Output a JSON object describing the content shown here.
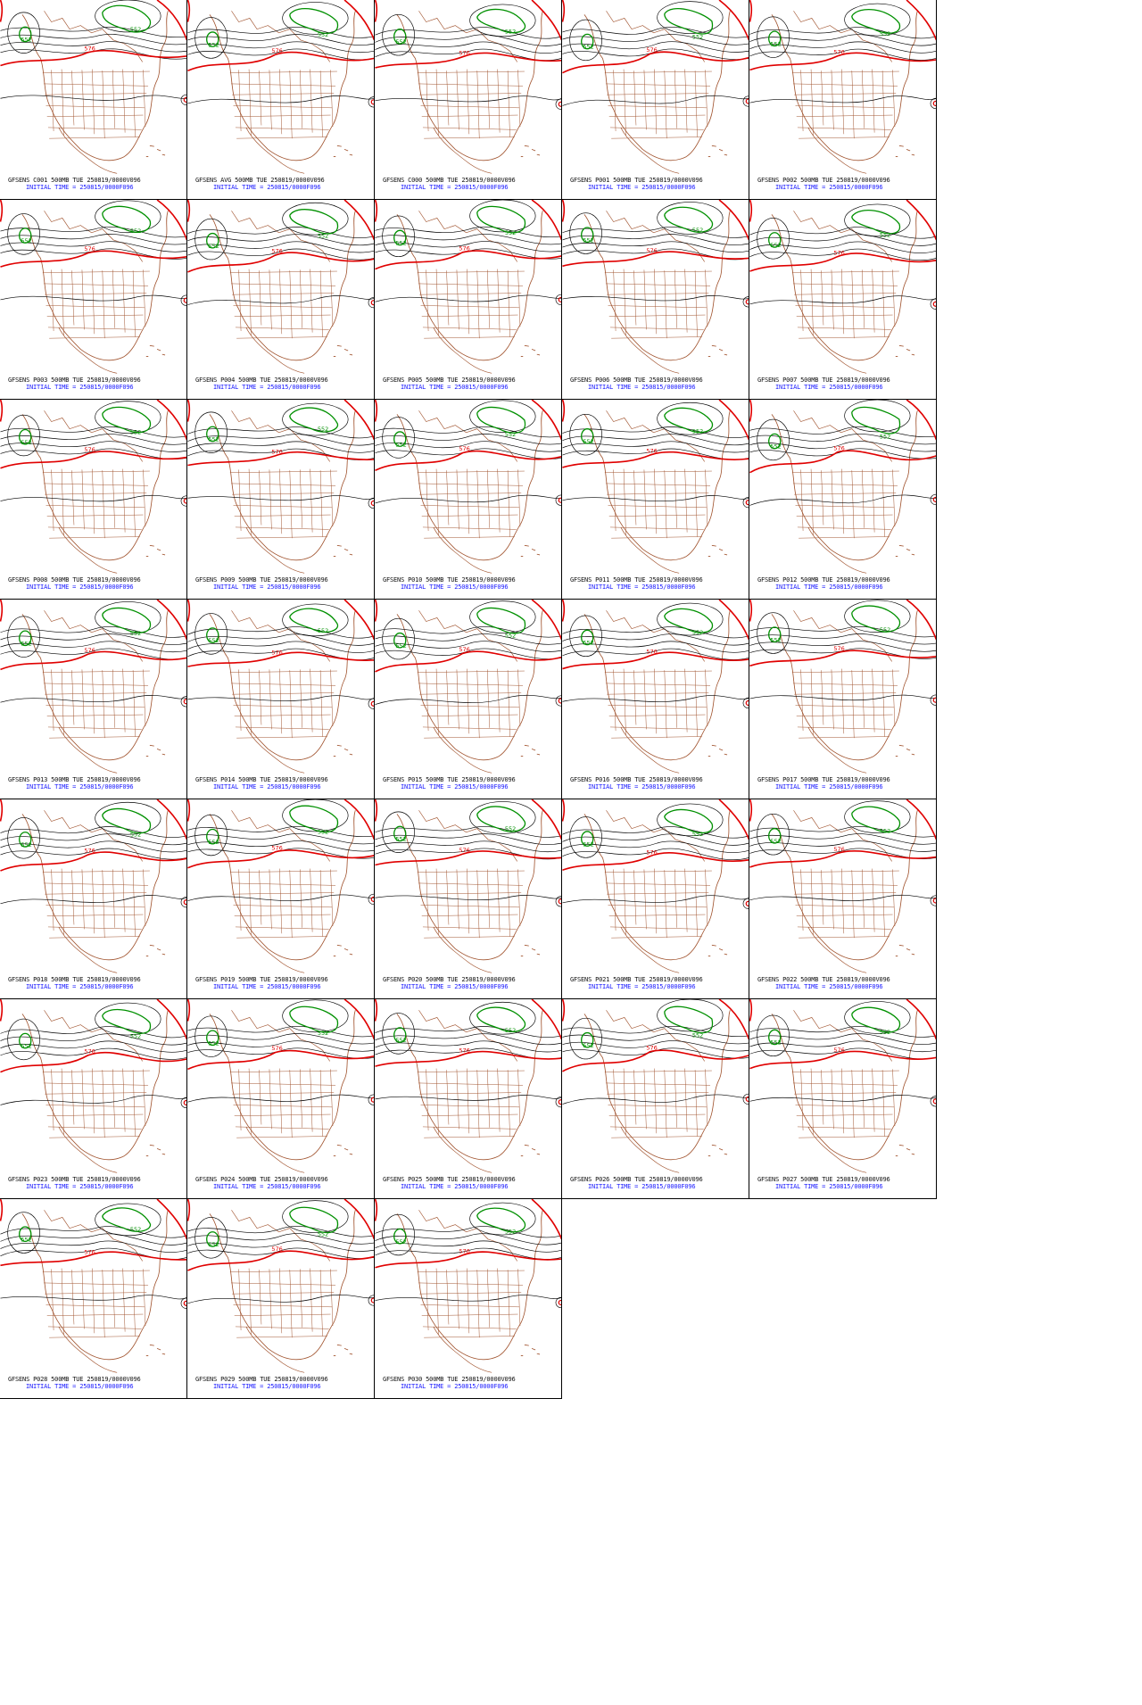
{
  "colors": {
    "contour_black": "#000000",
    "contour_576": "#e00000",
    "contour_552": "#009000",
    "borders": "#a0522d",
    "caption": "#111111",
    "init_caption": "#1a1aff"
  },
  "contour_labels": {
    "red": "576",
    "green": "552"
  },
  "panels": [
    {
      "label": "GFSENS C001 500MB TUE 250819/0000V096",
      "init": "INITIAL TIME = 250815/0000F096"
    },
    {
      "label": "GFSENS AVG 500MB TUE 250819/0000V096",
      "init": "INITIAL TIME = 250815/0000F096"
    },
    {
      "label": "GFSENS C000 500MB TUE 250819/0000V096",
      "init": "INITIAL TIME = 250815/0000F096"
    },
    {
      "label": "GFSENS P001 500MB TUE 250819/0000V096",
      "init": "INITIAL TIME = 250815/0000F096"
    },
    {
      "label": "GFSENS P002 500MB TUE 250819/0000V096",
      "init": "INITIAL TIME = 250815/0000F096"
    },
    {
      "label": "GFSENS P003 500MB TUE 250819/0000V096",
      "init": "INITIAL TIME = 250815/0000F096"
    },
    {
      "label": "GFSENS P004 500MB TUE 250819/0000V096",
      "init": "INITIAL TIME = 250815/0000F096"
    },
    {
      "label": "GFSENS P005 500MB TUE 250819/0000V096",
      "init": "INITIAL TIME = 250815/0000F096"
    },
    {
      "label": "GFSENS P006 500MB TUE 250819/0000V096",
      "init": "INITIAL TIME = 250815/0000F096"
    },
    {
      "label": "GFSENS P007 500MB TUE 250819/0000V096",
      "init": "INITIAL TIME = 250815/0000F096"
    },
    {
      "label": "GFSENS P008 500MB TUE 250819/0000V096",
      "init": "INITIAL TIME = 250815/0000F096"
    },
    {
      "label": "GFSENS P009 500MB TUE 250819/0000V096",
      "init": "INITIAL TIME = 250815/0000F096"
    },
    {
      "label": "GFSENS P010 500MB TUE 250819/0000V096",
      "init": "INITIAL TIME = 250815/0000F096"
    },
    {
      "label": "GFSENS P011 500MB TUE 250819/0000V096",
      "init": "INITIAL TIME = 250815/0000F096"
    },
    {
      "label": "GFSENS P012 500MB TUE 250819/0000V096",
      "init": "INITIAL TIME = 250815/0000F096"
    },
    {
      "label": "GFSENS P013 500MB TUE 250819/0000V096",
      "init": "INITIAL TIME = 250815/0000F096"
    },
    {
      "label": "GFSENS P014 500MB TUE 250819/0000V096",
      "init": "INITIAL TIME = 250815/0000F096"
    },
    {
      "label": "GFSENS P015 500MB TUE 250819/0000V096",
      "init": "INITIAL TIME = 250815/0000F096"
    },
    {
      "label": "GFSENS P016 500MB TUE 250819/0000V096",
      "init": "INITIAL TIME = 250815/0000F096"
    },
    {
      "label": "GFSENS P017 500MB TUE 250819/0000V096",
      "init": "INITIAL TIME = 250815/0000F096"
    },
    {
      "label": "GFSENS P018 500MB TUE 250819/0000V096",
      "init": "INITIAL TIME = 250815/0000F096"
    },
    {
      "label": "GFSENS P019 500MB TUE 250819/0000V096",
      "init": "INITIAL TIME = 250815/0000F096"
    },
    {
      "label": "GFSENS P020 500MB TUE 250819/0000V096",
      "init": "INITIAL TIME = 250815/0000F096"
    },
    {
      "label": "GFSENS P021 500MB TUE 250819/0000V096",
      "init": "INITIAL TIME = 250815/0000F096"
    },
    {
      "label": "GFSENS P022 500MB TUE 250819/0000V096",
      "init": "INITIAL TIME = 250815/0000F096"
    },
    {
      "label": "GFSENS P023 500MB TUE 250819/0000V096",
      "init": "INITIAL TIME = 250815/0000F096"
    },
    {
      "label": "GFSENS P024 500MB TUE 250819/0000V096",
      "init": "INITIAL TIME = 250815/0000F096"
    },
    {
      "label": "GFSENS P025 500MB TUE 250819/0000V096",
      "init": "INITIAL TIME = 250815/0000F096"
    },
    {
      "label": "GFSENS P026 500MB TUE 250819/0000V096",
      "init": "INITIAL TIME = 250815/0000F096"
    },
    {
      "label": "GFSENS P027 500MB TUE 250819/0000V096",
      "init": "INITIAL TIME = 250815/0000F096"
    },
    {
      "label": "GFSENS P028 500MB TUE 250819/0000V096",
      "init": "INITIAL TIME = 250815/0000F096"
    },
    {
      "label": "GFSENS P029 500MB TUE 250819/0000V096",
      "init": "INITIAL TIME = 250815/0000F096"
    },
    {
      "label": "GFSENS P030 500MB TUE 250819/0000V096",
      "init": "INITIAL TIME = 250815/0000F096"
    }
  ]
}
